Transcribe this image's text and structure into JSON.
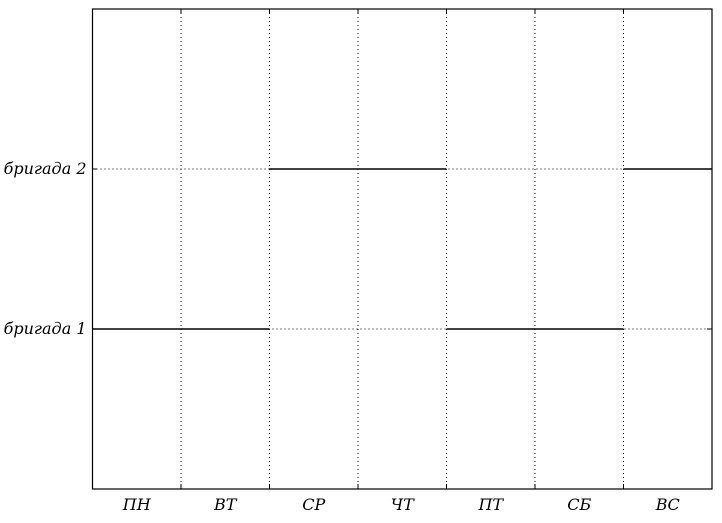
{
  "chart_data": {
    "type": "line",
    "title": "",
    "xlabel": "",
    "ylabel": "",
    "categories": [
      "ПН",
      "ВТ",
      "СР",
      "ЧТ",
      "ПТ",
      "СБ",
      "ВС"
    ],
    "y_categories": [
      {
        "label": "бригада 1",
        "value": 1
      },
      {
        "label": "бригада 2",
        "value": 2
      }
    ],
    "ylim": [
      0,
      3
    ],
    "xlim": [
      0,
      7
    ],
    "grid": true,
    "series": [
      {
        "values": [
          1,
          1,
          2,
          2,
          1,
          1,
          2
        ]
      }
    ],
    "segments": [
      {
        "day_start": 0,
        "day_end": 2,
        "brigade": 1
      },
      {
        "day_start": 2,
        "day_end": 4,
        "brigade": 2
      },
      {
        "day_start": 4,
        "day_end": 6,
        "brigade": 1
      },
      {
        "day_start": 6,
        "day_end": 7,
        "brigade": 2
      }
    ]
  }
}
